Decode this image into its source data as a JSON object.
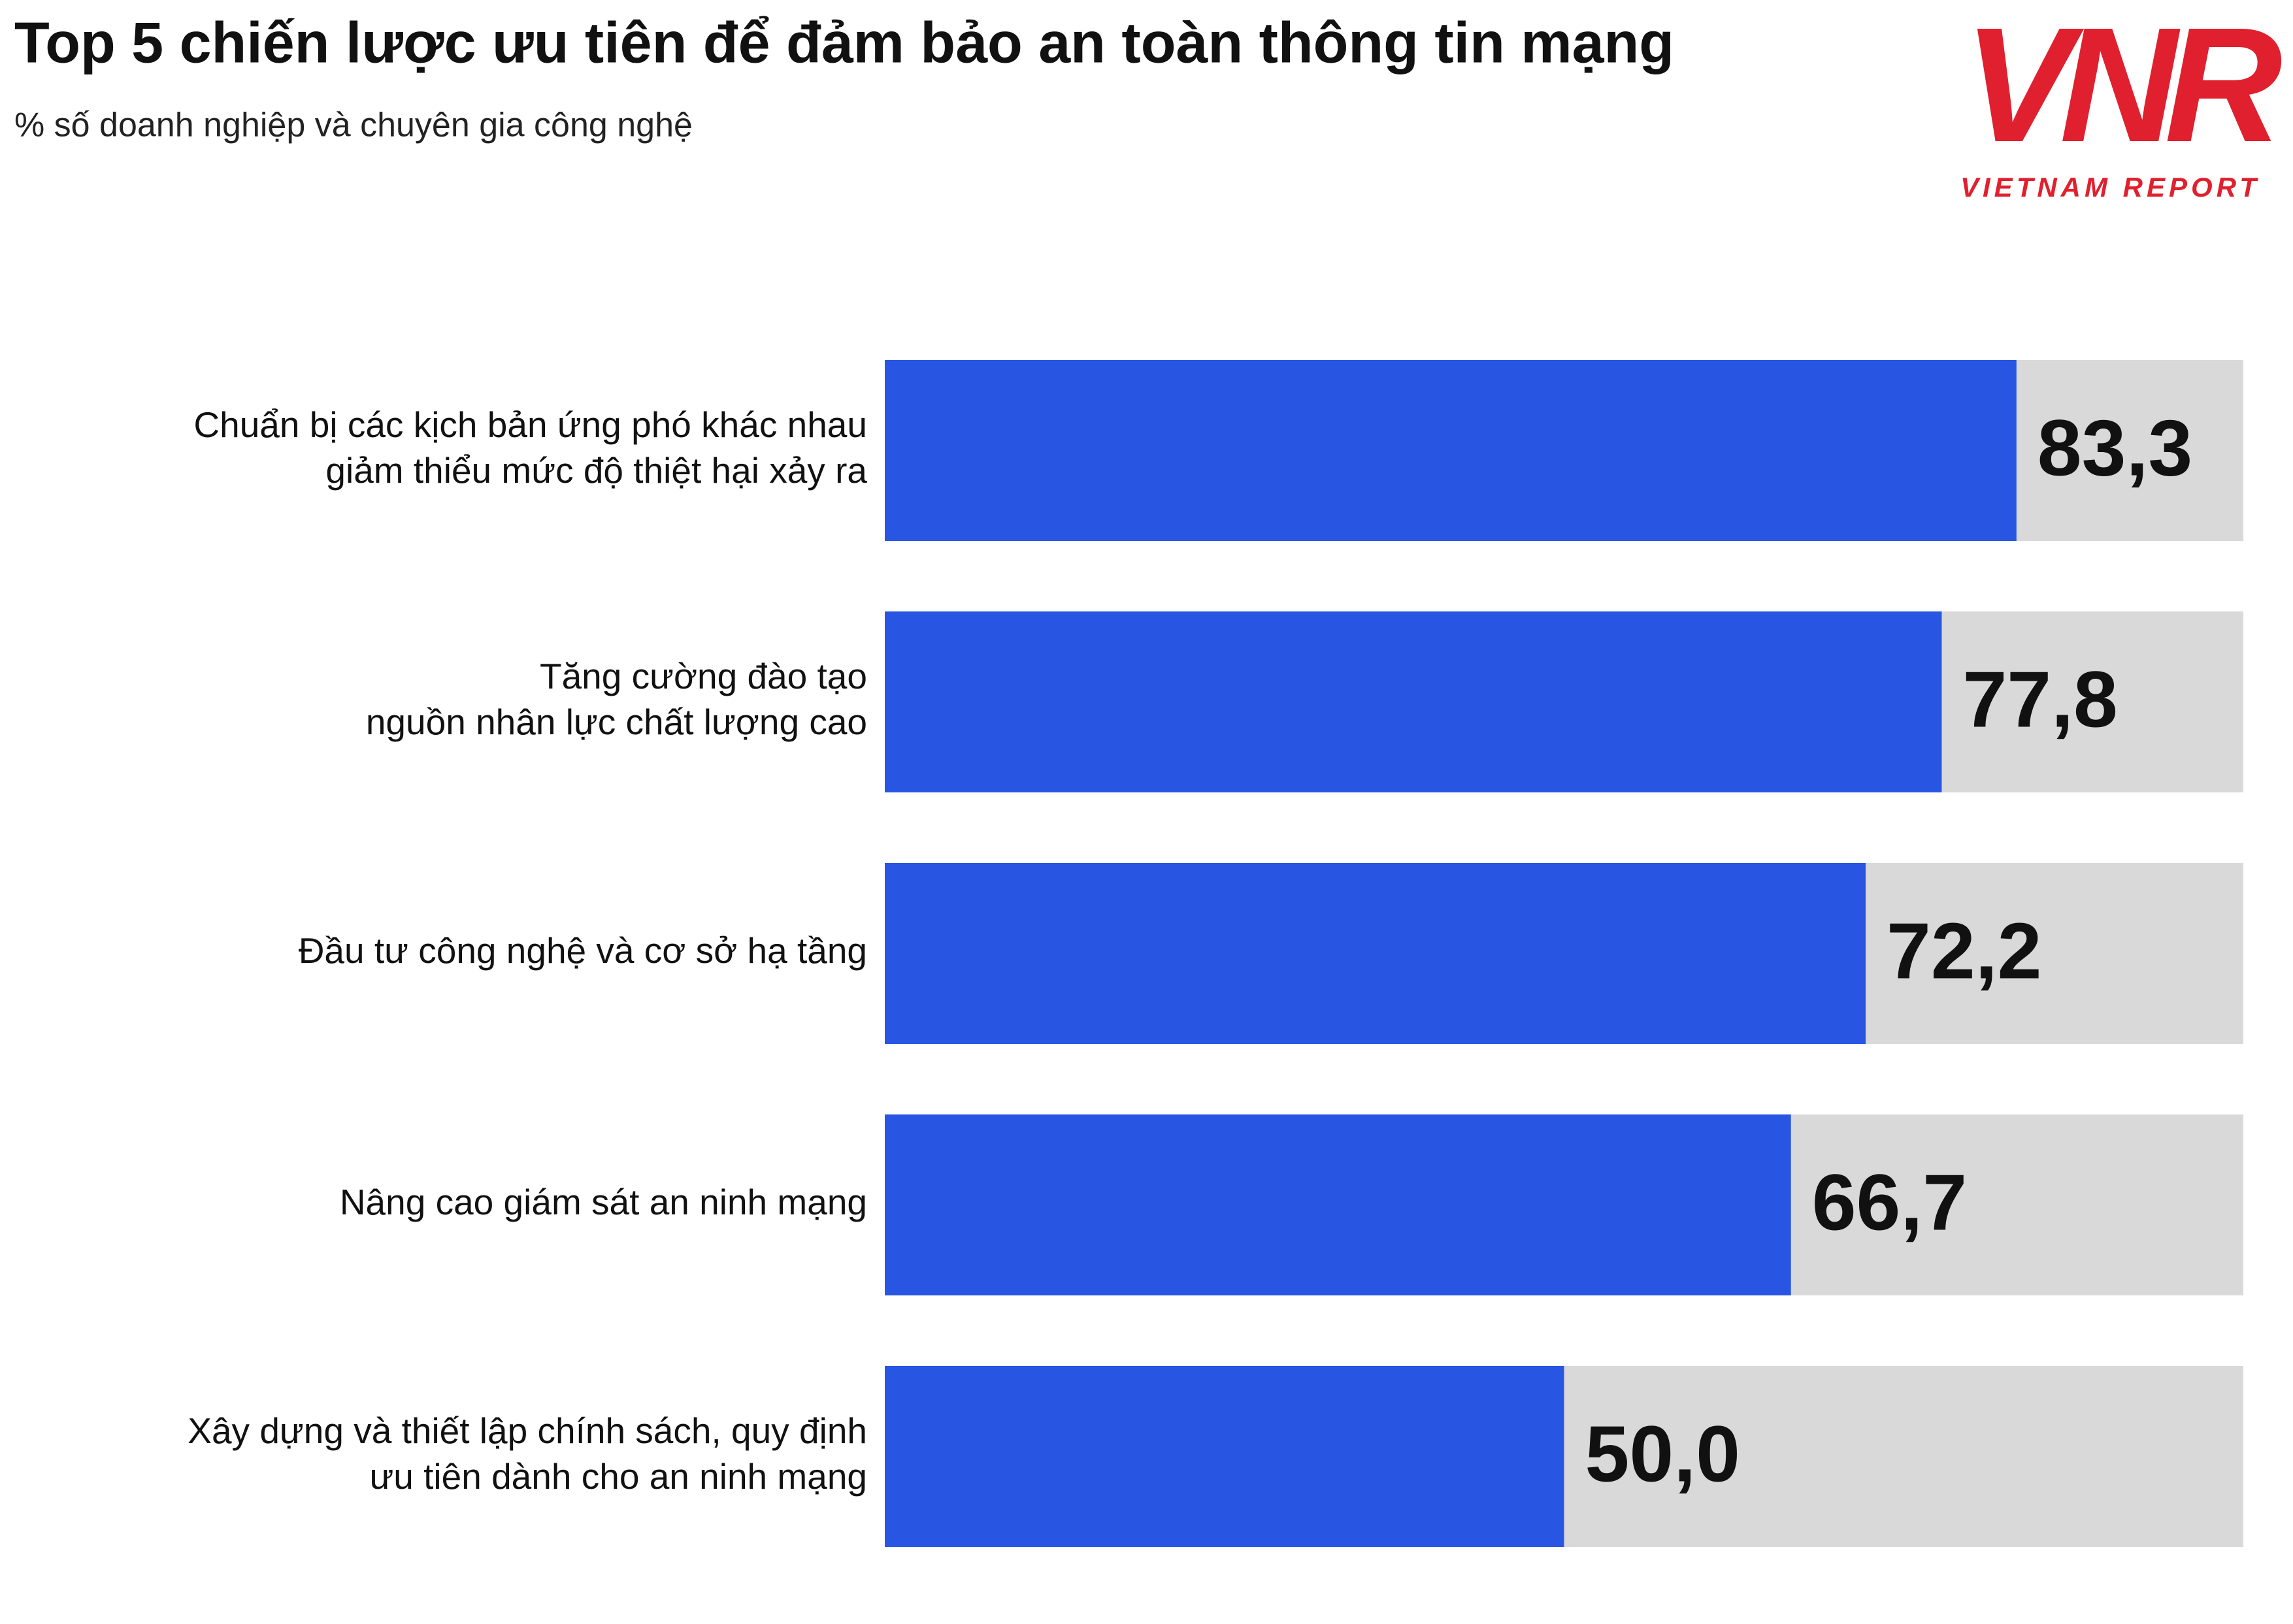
{
  "chart_data": {
    "type": "bar",
    "orientation": "horizontal",
    "title": "Top 5 chiến lược ưu tiên để đảm bảo an toàn thông tin mạng",
    "subtitle": "% số doanh nghiệp và chuyên gia công nghệ",
    "categories": [
      [
        "Chuẩn bị các kịch bản ứng phó khác nhau",
        "giảm thiểu mức độ thiệt hại xảy ra"
      ],
      [
        "Tăng cường đào tạo",
        "nguồn nhân lực chất lượng cao"
      ],
      [
        "Đầu tư công nghệ và cơ sở hạ tầng"
      ],
      [
        "Nâng cao giám sát an ninh mạng"
      ],
      [
        "Xây dựng và thiết lập chính sách, quy định",
        "ưu tiên dành cho an ninh mạng"
      ]
    ],
    "values": [
      83.3,
      77.8,
      72.2,
      66.7,
      50.0
    ],
    "value_labels": [
      "83,3",
      "77,8",
      "72,2",
      "66,7",
      "50,0"
    ],
    "color": "#2856e3",
    "track_color": "#d9d9d9",
    "xlim": [
      0,
      100
    ],
    "logo": {
      "mark": "VNR",
      "text": "VIETNAM REPORT",
      "color": "#e0202e"
    }
  }
}
